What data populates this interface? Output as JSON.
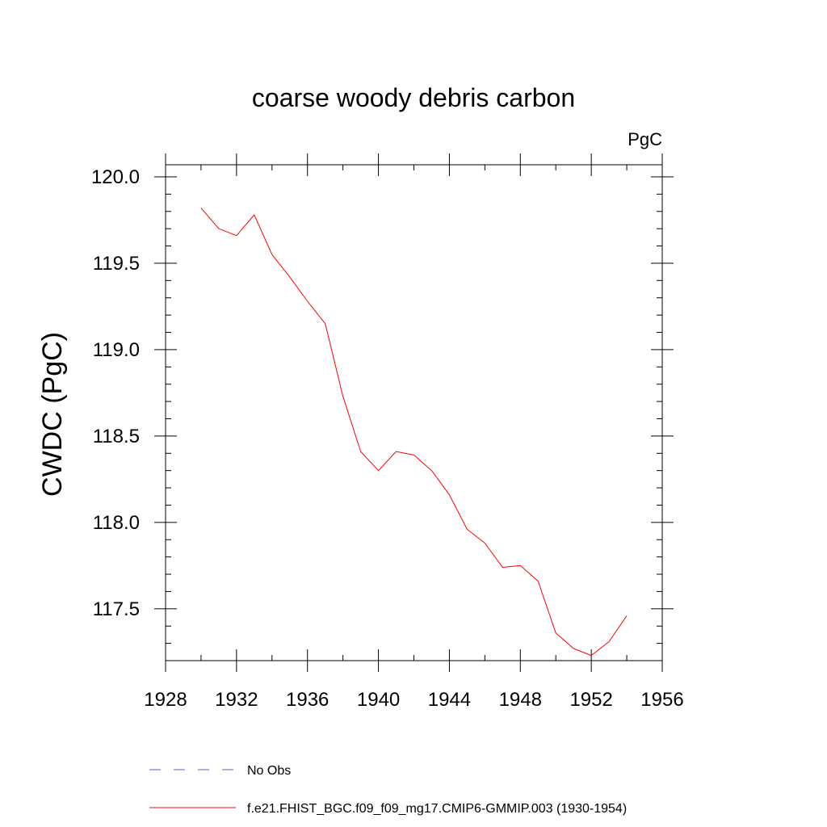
{
  "chart_data": {
    "type": "line",
    "title": "coarse woody debris carbon",
    "units": "PgC",
    "ylabel": "CWDC  (PgC)",
    "xlabel": "",
    "xlim": [
      1928,
      1956
    ],
    "ylim": [
      117.2,
      120.07
    ],
    "x_ticks": [
      1928,
      1932,
      1936,
      1940,
      1944,
      1948,
      1952,
      1956
    ],
    "y_ticks": [
      117.5,
      118.0,
      118.5,
      119.0,
      119.5,
      120.0
    ],
    "y_tick_labels": [
      "117.5",
      "118.0",
      "118.5",
      "119.0",
      "119.5",
      "120.0"
    ],
    "grid": false,
    "legend_position": "bottom",
    "series": [
      {
        "name": "f.e21.FHIST_BGC.f09_f09_mg17.CMIP6-GMMIP.003 (1930-1954)",
        "color": "#ff0000",
        "style": "solid",
        "x": [
          1930,
          1931,
          1932,
          1933,
          1934,
          1935,
          1936,
          1937,
          1938,
          1939,
          1940,
          1941,
          1942,
          1943,
          1944,
          1945,
          1946,
          1947,
          1948,
          1949,
          1950,
          1951,
          1952,
          1953,
          1954
        ],
        "y": [
          119.82,
          119.7,
          119.66,
          119.78,
          119.55,
          119.42,
          119.28,
          119.15,
          118.73,
          118.41,
          118.3,
          118.41,
          118.39,
          118.3,
          118.16,
          117.96,
          117.88,
          117.74,
          117.75,
          117.66,
          117.36,
          117.27,
          117.23,
          117.31,
          117.46
        ]
      }
    ],
    "legend": [
      {
        "label": "No Obs",
        "color": "#6a5acd",
        "style": "dashed"
      },
      {
        "label": "f.e21.FHIST_BGC.f09_f09_mg17.CMIP6-GMMIP.003 (1930-1954)",
        "color": "#ff0000",
        "style": "solid"
      }
    ]
  }
}
